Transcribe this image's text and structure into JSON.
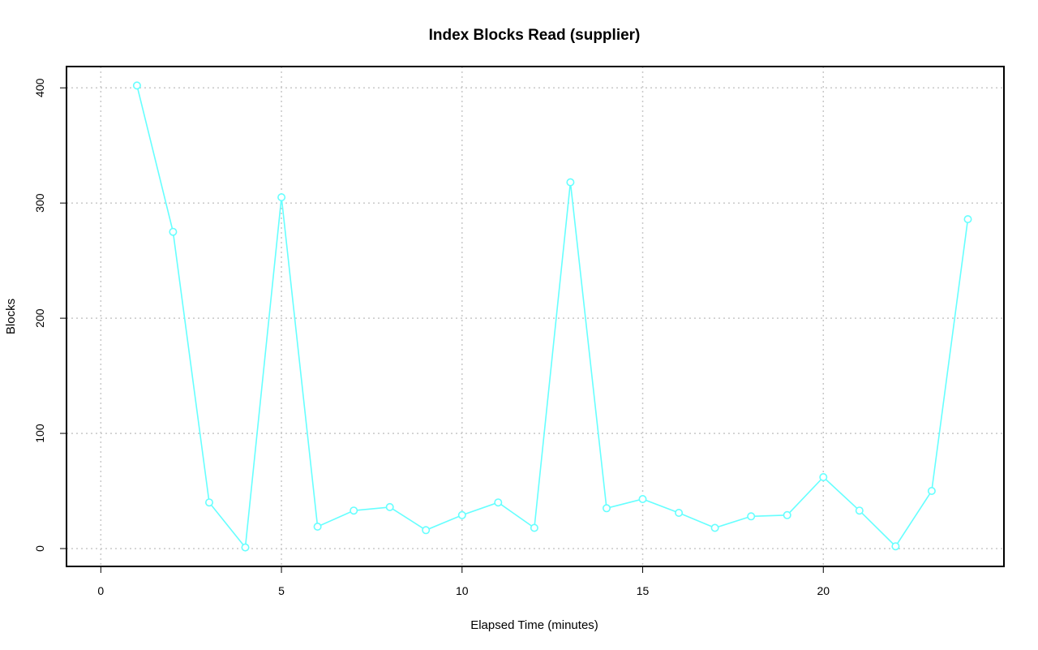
{
  "chart_data": {
    "type": "line",
    "title": "Index Blocks Read (supplier)",
    "xlabel": "Elapsed Time (minutes)",
    "ylabel": "Blocks",
    "xlim": [
      -0.95,
      25.0
    ],
    "ylim": [
      -15.5,
      418.5
    ],
    "x_ticks": [
      0,
      5,
      10,
      15,
      20
    ],
    "y_ticks": [
      0,
      100,
      200,
      300,
      400
    ],
    "grid": true,
    "grid_style": "dotted",
    "markers": "open-circle",
    "series": [
      {
        "color": "#66ffff",
        "x": [
          1,
          2,
          3,
          4,
          5,
          6,
          7,
          8,
          9,
          10,
          11,
          12,
          13,
          14,
          15,
          16,
          17,
          18,
          19,
          20,
          21,
          22,
          23,
          24
        ],
        "y": [
          402,
          275,
          40,
          1,
          305,
          19,
          33,
          36,
          16,
          29,
          40,
          18,
          318,
          35,
          43,
          31,
          18,
          28,
          29,
          62,
          33,
          2,
          50,
          286
        ]
      }
    ]
  }
}
